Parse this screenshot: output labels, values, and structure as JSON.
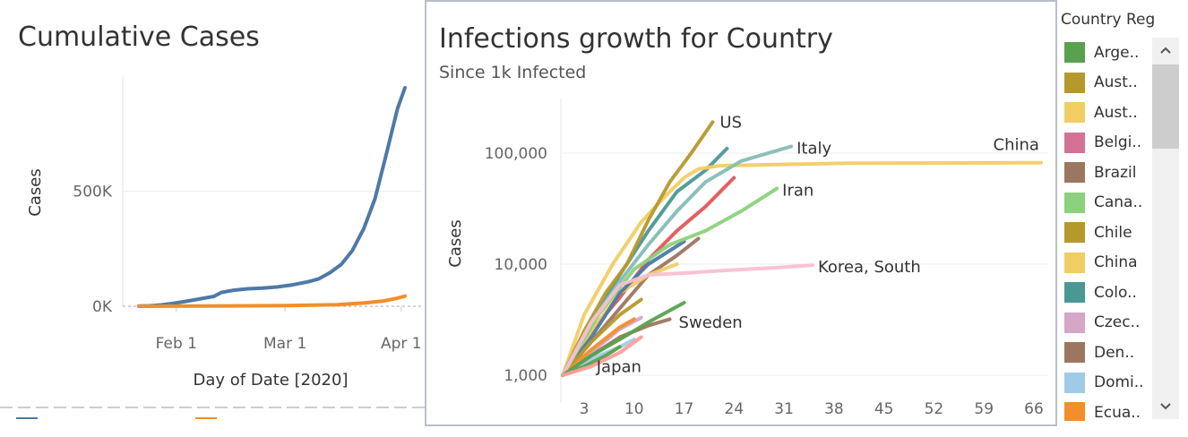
{
  "left": {
    "title": "Cumulative Cases"
  },
  "right": {
    "title": "Infections growth for Country",
    "subtitle": "Since 1k Infected"
  },
  "legend": {
    "title": "Country Regi..",
    "items": [
      {
        "label": "Arge..",
        "color": "#59a14f"
      },
      {
        "label": "Aust..",
        "color": "#b6992d"
      },
      {
        "label": "Aust..",
        "color": "#f1ce63"
      },
      {
        "label": "Belgi..",
        "color": "#d37295"
      },
      {
        "label": "Brazil",
        "color": "#9d7660"
      },
      {
        "label": "Cana..",
        "color": "#8cd17d"
      },
      {
        "label": "Chile",
        "color": "#b6992d"
      },
      {
        "label": "China",
        "color": "#f1ce63"
      },
      {
        "label": "Colo..",
        "color": "#499894"
      },
      {
        "label": "Czec..",
        "color": "#d4a6c8"
      },
      {
        "label": "Den..",
        "color": "#9d7660"
      },
      {
        "label": "Domi..",
        "color": "#a0cbe8"
      },
      {
        "label": "Ecua..",
        "color": "#f28e2b"
      }
    ],
    "scroll_up_icon": "chevron-up-icon",
    "scroll_down_icon": "chevron-down-icon"
  },
  "chart_data": [
    {
      "type": "line",
      "title": "Cumulative Cases",
      "xlabel": "Day of Date [2020]",
      "ylabel": "Cases",
      "x_ticks": [
        "Feb 1",
        "Mar 1",
        "Apr 1"
      ],
      "y_ticks": [
        "0K",
        "500K"
      ],
      "ylim": [
        0,
        950000
      ],
      "x_domain": [
        "2020-01-22",
        "2020-04-02"
      ],
      "series": [
        {
          "color": "#4e79a7",
          "points": [
            [
              "2020-01-22",
              600
            ],
            [
              "2020-01-25",
              2100
            ],
            [
              "2020-01-28",
              6000
            ],
            [
              "2020-01-31",
              12000
            ],
            [
              "2020-02-03",
              20000
            ],
            [
              "2020-02-07",
              31000
            ],
            [
              "2020-02-11",
              43000
            ],
            [
              "2020-02-13",
              60000
            ],
            [
              "2020-02-16",
              69000
            ],
            [
              "2020-02-20",
              76000
            ],
            [
              "2020-02-24",
              79000
            ],
            [
              "2020-02-28",
              84000
            ],
            [
              "2020-03-03",
              93000
            ],
            [
              "2020-03-07",
              106000
            ],
            [
              "2020-03-10",
              119000
            ],
            [
              "2020-03-13",
              146000
            ],
            [
              "2020-03-16",
              182000
            ],
            [
              "2020-03-19",
              243000
            ],
            [
              "2020-03-22",
              337000
            ],
            [
              "2020-03-25",
              467000
            ],
            [
              "2020-03-28",
              660000
            ],
            [
              "2020-03-31",
              858000
            ],
            [
              "2020-04-02",
              950000
            ]
          ]
        },
        {
          "color": "#f28e2b",
          "points": [
            [
              "2020-01-22",
              0
            ],
            [
              "2020-02-15",
              1500
            ],
            [
              "2020-03-01",
              3000
            ],
            [
              "2020-03-15",
              7000
            ],
            [
              "2020-03-22",
              14000
            ],
            [
              "2020-03-27",
              22000
            ],
            [
              "2020-03-31",
              35000
            ],
            [
              "2020-04-02",
              44000
            ]
          ]
        }
      ]
    },
    {
      "type": "line",
      "title": "Infections growth for Country",
      "subtitle": "Since 1k Infected",
      "xlabel": "",
      "ylabel": "Cases",
      "y_scale": "log",
      "x_ticks": [
        3,
        10,
        17,
        24,
        31,
        38,
        45,
        52,
        59,
        66
      ],
      "y_ticks": [
        1000,
        10000,
        100000
      ],
      "y_tick_labels": [
        "1,000",
        "10,000",
        "100,000"
      ],
      "xlim": [
        0,
        68
      ],
      "ylim": [
        800,
        300000
      ],
      "series": [
        {
          "name": "China",
          "color": "#f1ce63",
          "label": "China",
          "points": [
            [
              0,
              1000
            ],
            [
              3,
              3500
            ],
            [
              7,
              10000
            ],
            [
              11,
              24000
            ],
            [
              15,
              45000
            ],
            [
              17,
              60000
            ],
            [
              19,
              72000
            ],
            [
              22,
              77000
            ],
            [
              30,
              79000
            ],
            [
              40,
              81000
            ],
            [
              55,
              81500
            ],
            [
              67,
              82000
            ]
          ]
        },
        {
          "name": "US",
          "color": "#b6992d",
          "label": "US",
          "points": [
            [
              0,
              1000
            ],
            [
              3,
              2500
            ],
            [
              6,
              5500
            ],
            [
              9,
              10000
            ],
            [
              12,
              25000
            ],
            [
              15,
              55000
            ],
            [
              18,
              100000
            ],
            [
              21,
              190000
            ]
          ]
        },
        {
          "name": "Italy",
          "color": "#86bcb6",
          "label": "Italy",
          "points": [
            [
              0,
              1000
            ],
            [
              4,
              3000
            ],
            [
              8,
              7000
            ],
            [
              12,
              15000
            ],
            [
              16,
              30000
            ],
            [
              20,
              55000
            ],
            [
              25,
              85000
            ],
            [
              32,
              115000
            ]
          ]
        },
        {
          "name": "Iran",
          "color": "#8cd17d",
          "label": "Iran",
          "points": [
            [
              0,
              1000
            ],
            [
              5,
              3500
            ],
            [
              10,
              9000
            ],
            [
              15,
              15000
            ],
            [
              20,
              20000
            ],
            [
              25,
              30000
            ],
            [
              30,
              48000
            ]
          ]
        },
        {
          "name": "Korea, South",
          "color": "#fabfd2",
          "label": "Korea, South",
          "points": [
            [
              0,
              1000
            ],
            [
              4,
              3000
            ],
            [
              8,
              6500
            ],
            [
              12,
              8000
            ],
            [
              17,
              8300
            ],
            [
              23,
              8800
            ],
            [
              30,
              9300
            ],
            [
              35,
              9800
            ]
          ]
        },
        {
          "name": "Sweden",
          "color": "#59a14f",
          "label": "Sweden",
          "points": [
            [
              0,
              1000
            ],
            [
              4,
              1500
            ],
            [
              8,
              2100
            ],
            [
              12,
              3000
            ],
            [
              17,
              4500
            ]
          ]
        },
        {
          "name": "Japan",
          "color": "#ff9d9a",
          "label": "Japan",
          "points": [
            [
              0,
              1000
            ],
            [
              4,
              1200
            ],
            [
              8,
              1600
            ],
            [
              11,
              2200
            ]
          ]
        },
        {
          "name": "Colombia",
          "color": "#499894",
          "points": [
            [
              0,
              1000
            ],
            [
              4,
              3000
            ],
            [
              8,
              8000
            ],
            [
              12,
              20000
            ],
            [
              16,
              45000
            ],
            [
              20,
              70000
            ],
            [
              23,
              110000
            ]
          ]
        },
        {
          "name": "Belgium",
          "color": "#e15759",
          "points": [
            [
              0,
              1000
            ],
            [
              4,
              2500
            ],
            [
              8,
              5000
            ],
            [
              12,
              11000
            ],
            [
              16,
              20000
            ],
            [
              20,
              33000
            ],
            [
              24,
              60000
            ]
          ]
        },
        {
          "name": "Brazil",
          "color": "#9d7660",
          "points": [
            [
              0,
              1000
            ],
            [
              4,
              2000
            ],
            [
              8,
              4000
            ],
            [
              12,
              8000
            ],
            [
              16,
              12000
            ],
            [
              19,
              17000
            ]
          ]
        },
        {
          "name": "Austria",
          "color": "#f1ce63",
          "points": [
            [
              0,
              1000
            ],
            [
              4,
              2500
            ],
            [
              8,
              5500
            ],
            [
              12,
              8000
            ],
            [
              16,
              10000
            ]
          ]
        },
        {
          "name": "Canada",
          "color": "#4e79a7",
          "points": [
            [
              0,
              1000
            ],
            [
              4,
              2200
            ],
            [
              8,
              5500
            ],
            [
              12,
              10000
            ],
            [
              17,
              16000
            ]
          ]
        },
        {
          "name": "Czechia",
          "color": "#d4a6c8",
          "points": [
            [
              0,
              1000
            ],
            [
              4,
              1600
            ],
            [
              8,
              2600
            ],
            [
              11,
              3300
            ]
          ]
        },
        {
          "name": "Denmark",
          "color": "#9d7660",
          "points": [
            [
              0,
              1000
            ],
            [
              4,
              1500
            ],
            [
              8,
              2200
            ],
            [
              12,
              2800
            ],
            [
              15,
              3200
            ]
          ]
        },
        {
          "name": "Chile",
          "color": "#b6992d",
          "points": [
            [
              0,
              1000
            ],
            [
              4,
              2000
            ],
            [
              8,
              3500
            ],
            [
              11,
              4800
            ]
          ]
        },
        {
          "name": "Dominican Republic",
          "color": "#a0cbe8",
          "points": [
            [
              0,
              1000
            ],
            [
              4,
              1400
            ],
            [
              8,
              1800
            ],
            [
              10,
              2100
            ]
          ]
        },
        {
          "name": "Ecuador",
          "color": "#f28e2b",
          "points": [
            [
              0,
              1000
            ],
            [
              4,
              1700
            ],
            [
              8,
              2700
            ],
            [
              10,
              3200
            ]
          ]
        },
        {
          "name": "Argentina",
          "color": "#59a14f",
          "points": [
            [
              0,
              1000
            ],
            [
              3,
              1200
            ],
            [
              6,
              1500
            ],
            [
              8,
              1800
            ]
          ]
        }
      ]
    }
  ]
}
